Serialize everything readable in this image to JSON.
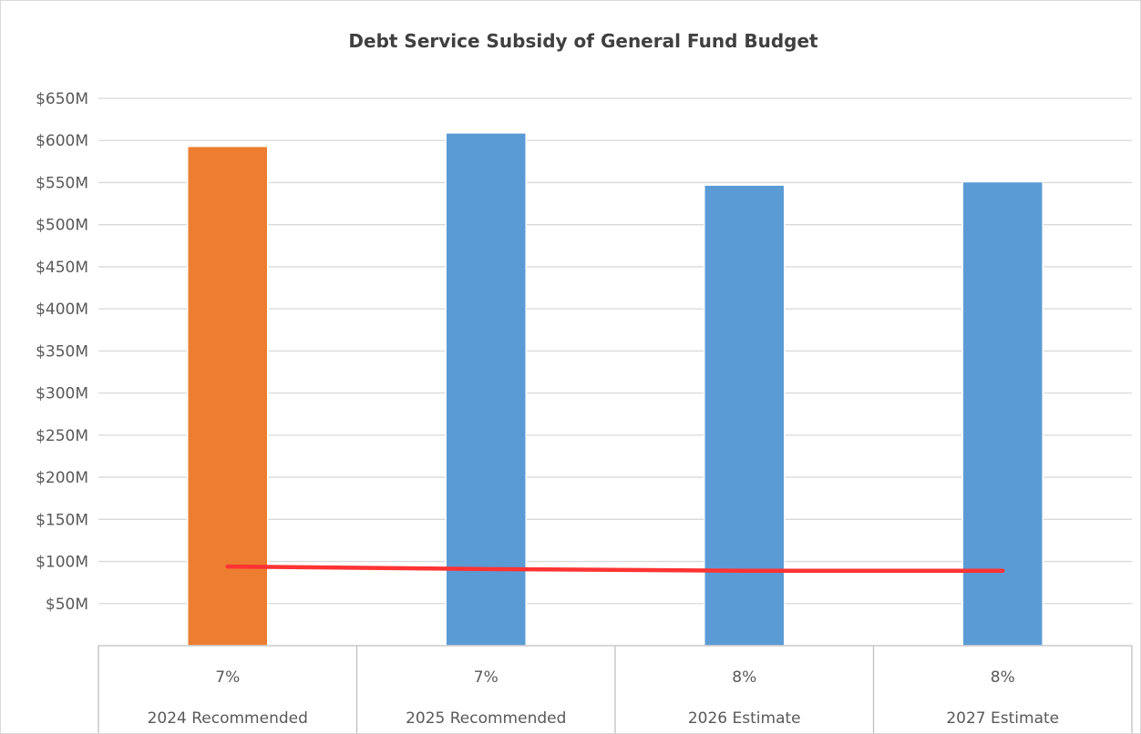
{
  "chart_data": {
    "type": "bar",
    "title": "Debt Service Subsidy of General Fund Budget",
    "xlabel": "",
    "ylabel": "",
    "ylim": [
      0,
      650
    ],
    "y_ticks": [
      "$50M",
      "$100M",
      "$150M",
      "$200M",
      "$250M",
      "$300M",
      "$350M",
      "$400M",
      "$450M",
      "$500M",
      "$550M",
      "$600M",
      "$650M"
    ],
    "y_tick_values": [
      50,
      100,
      150,
      200,
      250,
      300,
      350,
      400,
      450,
      500,
      550,
      600,
      650
    ],
    "categories": [
      "2024 Recommended",
      "2025 Recommended",
      "2026 Estimate",
      "2027 Estimate"
    ],
    "percent_labels": [
      "7%",
      "7%",
      "8%",
      "8%"
    ],
    "series": [
      {
        "type": "bar",
        "values": [
          593,
          609,
          547,
          551
        ],
        "colors": [
          "#ED7D31",
          "#5B9BD5",
          "#5B9BD5",
          "#5B9BD5"
        ]
      },
      {
        "type": "line",
        "values": [
          94,
          91,
          89,
          89
        ],
        "color": "#FF3333"
      }
    ],
    "grid": true,
    "legend": "none"
  }
}
